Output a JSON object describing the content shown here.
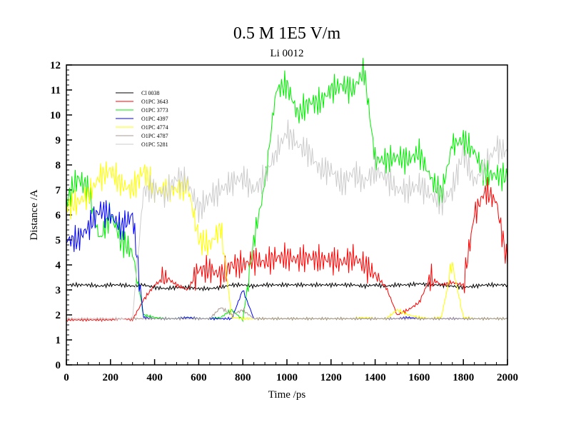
{
  "chart_data": {
    "type": "line",
    "title": "0.5 M 1E5 V/m",
    "subtitle": "Li 0012",
    "xlabel": "Time /ps",
    "ylabel": "Distance /A",
    "xlim": [
      0,
      2000
    ],
    "ylim": [
      0,
      12
    ],
    "xticks": [
      "0",
      "200",
      "400",
      "600",
      "800",
      "1000",
      "1200",
      "1400",
      "1600",
      "1800",
      "2000"
    ],
    "yticks": [
      "0",
      "1",
      "2",
      "3",
      "4",
      "5",
      "6",
      "7",
      "8",
      "9",
      "10",
      "11",
      "12"
    ],
    "legend_position": "top-left",
    "x": [
      0,
      50,
      100,
      150,
      200,
      250,
      300,
      350,
      400,
      450,
      500,
      550,
      600,
      650,
      700,
      750,
      800,
      850,
      900,
      950,
      1000,
      1050,
      1100,
      1150,
      1200,
      1250,
      1300,
      1350,
      1400,
      1450,
      1500,
      1550,
      1600,
      1650,
      1700,
      1750,
      1800,
      1850,
      1900,
      1950,
      2000
    ],
    "series": [
      {
        "name": "Cl 0038",
        "color": "#000000",
        "values": [
          3.2,
          3.2,
          3.2,
          3.15,
          3.2,
          3.2,
          3.15,
          3.2,
          3.1,
          3.05,
          3.1,
          3.1,
          3.05,
          3.05,
          3.1,
          3.2,
          3.2,
          3.15,
          3.2,
          3.2,
          3.2,
          3.2,
          3.2,
          3.2,
          3.2,
          3.2,
          3.2,
          3.15,
          3.2,
          3.15,
          3.2,
          3.2,
          3.25,
          3.2,
          3.2,
          3.15,
          3.1,
          3.15,
          3.2,
          3.2,
          3.2
        ]
      },
      {
        "name": "O1PC 3643",
        "color": "#ff0000",
        "values": [
          1.8,
          1.8,
          1.8,
          1.8,
          1.8,
          1.85,
          1.8,
          2.6,
          3.2,
          3.5,
          3.2,
          3.0,
          3.8,
          3.8,
          3.6,
          4.0,
          4.0,
          4.2,
          4.1,
          4.3,
          4.3,
          4.2,
          4.3,
          4.2,
          4.2,
          4.1,
          4.3,
          4.0,
          3.6,
          3.1,
          2.0,
          2.2,
          2.5,
          3.5,
          3.2,
          3.3,
          3.2,
          6.0,
          7.0,
          6.5,
          4.0
        ]
      },
      {
        "name": "O1PC 3773",
        "color": "#00ee00",
        "values": [
          6.5,
          7.5,
          7.0,
          5.0,
          6.0,
          5.0,
          4.5,
          2.0,
          1.9,
          1.85,
          1.85,
          1.9,
          1.85,
          1.85,
          1.9,
          2.2,
          1.8,
          5.0,
          7.2,
          11.0,
          11.2,
          10.0,
          10.5,
          10.5,
          11.0,
          11.2,
          11.0,
          11.8,
          8.2,
          8.2,
          8.3,
          8.2,
          8.5,
          7.5,
          6.8,
          8.8,
          9.0,
          8.5,
          7.6,
          7.6,
          7.5
        ]
      },
      {
        "name": "O1PC 4397",
        "color": "#0000ff",
        "values": [
          5.0,
          5.0,
          5.5,
          6.2,
          6.0,
          5.5,
          6.0,
          1.9,
          1.85,
          1.85,
          1.85,
          1.9,
          1.85,
          1.85,
          1.85,
          1.85,
          3.0,
          1.85,
          1.85,
          1.85,
          1.85,
          1.85,
          1.85,
          1.85,
          1.85,
          1.85,
          1.85,
          1.85,
          1.85,
          1.85,
          1.85,
          1.9,
          1.85,
          1.85,
          1.85,
          1.85,
          1.85,
          1.85,
          1.85,
          1.85,
          1.85
        ]
      },
      {
        "name": "O1PC 4774",
        "color": "#ffff00",
        "values": [
          6.3,
          6.5,
          6.8,
          7.5,
          7.8,
          7.2,
          7.0,
          7.8,
          7.0,
          7.0,
          7.0,
          7.2,
          5.0,
          4.8,
          5.5,
          1.9,
          1.85,
          1.85,
          1.85,
          1.85,
          1.85,
          1.85,
          1.85,
          1.85,
          1.85,
          1.85,
          1.85,
          1.9,
          1.85,
          1.85,
          2.2,
          2.0,
          1.9,
          1.85,
          1.9,
          4.0,
          1.9,
          1.85,
          1.85,
          1.85,
          1.85
        ]
      },
      {
        "name": "O1PC 4787",
        "color": "#a89890",
        "values": [
          1.85,
          1.85,
          1.85,
          1.85,
          1.85,
          1.85,
          1.85,
          1.85,
          1.85,
          1.85,
          1.85,
          1.85,
          1.85,
          1.85,
          2.3,
          2.0,
          2.2,
          1.85,
          1.85,
          1.85,
          1.85,
          1.85,
          1.85,
          1.85,
          1.85,
          1.85,
          1.85,
          1.85,
          1.85,
          1.85,
          1.85,
          1.85,
          1.85,
          1.85,
          1.85,
          1.85,
          1.85,
          1.85,
          1.85,
          1.85,
          1.85
        ]
      },
      {
        "name": "O1PC 5281",
        "color": "#cccccc",
        "values": [
          1.85,
          1.85,
          1.85,
          1.85,
          1.85,
          1.85,
          1.85,
          7.0,
          7.0,
          6.8,
          7.5,
          7.3,
          6.2,
          6.7,
          7.0,
          7.3,
          7.5,
          7.0,
          7.5,
          8.5,
          9.3,
          8.8,
          8.5,
          7.8,
          7.8,
          7.2,
          7.7,
          7.3,
          7.8,
          7.5,
          7.0,
          7.0,
          7.2,
          6.8,
          6.5,
          7.0,
          8.5,
          7.3,
          8.0,
          8.7,
          8.5
        ]
      }
    ]
  }
}
